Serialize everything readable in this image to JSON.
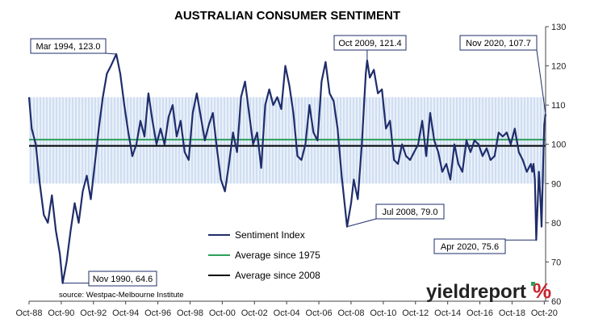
{
  "chart_data": {
    "type": "line",
    "title": "AUSTRALIAN CONSUMER SENTIMENT",
    "x_tick_labels": [
      "Oct-88",
      "Oct-90",
      "Oct-92",
      "Oct-94",
      "Oct-96",
      "Oct-98",
      "Oct-00",
      "Oct-02",
      "Oct-04",
      "Oct-06",
      "Oct-08",
      "Oct-10",
      "Oct-12",
      "Oct-14",
      "Oct-16",
      "Oct-18",
      "Oct-20"
    ],
    "y_tick_labels": [
      "130",
      "120",
      "110",
      "100",
      "90",
      "80",
      "70",
      "60"
    ],
    "ylim": [
      60,
      130
    ],
    "xlim": [
      "1988-10",
      "2020-11"
    ],
    "y_axis_side": "right",
    "series": [
      {
        "name": "Sentiment Index",
        "color": "#1f2d6b",
        "points": [
          [
            "1988-10",
            112
          ],
          [
            "1988-12",
            104
          ],
          [
            "1989-03",
            100
          ],
          [
            "1989-06",
            90
          ],
          [
            "1989-09",
            82
          ],
          [
            "1989-12",
            80
          ],
          [
            "1990-03",
            87
          ],
          [
            "1990-06",
            78
          ],
          [
            "1990-09",
            72
          ],
          [
            "1990-11",
            64.6
          ],
          [
            "1991-02",
            70
          ],
          [
            "1991-05",
            78
          ],
          [
            "1991-08",
            85
          ],
          [
            "1991-11",
            80
          ],
          [
            "1992-02",
            88
          ],
          [
            "1992-05",
            92
          ],
          [
            "1992-08",
            86
          ],
          [
            "1992-11",
            95
          ],
          [
            "1993-02",
            104
          ],
          [
            "1993-05",
            112
          ],
          [
            "1993-08",
            118
          ],
          [
            "1993-11",
            120
          ],
          [
            "1994-03",
            123.0
          ],
          [
            "1994-06",
            118
          ],
          [
            "1994-09",
            110
          ],
          [
            "1994-12",
            103
          ],
          [
            "1995-03",
            97
          ],
          [
            "1995-06",
            100
          ],
          [
            "1995-09",
            106
          ],
          [
            "1995-12",
            102
          ],
          [
            "1996-03",
            113
          ],
          [
            "1996-06",
            106
          ],
          [
            "1996-09",
            100
          ],
          [
            "1996-12",
            104
          ],
          [
            "1997-03",
            100
          ],
          [
            "1997-06",
            107
          ],
          [
            "1997-09",
            110
          ],
          [
            "1997-12",
            102
          ],
          [
            "1998-03",
            106
          ],
          [
            "1998-06",
            98
          ],
          [
            "1998-09",
            96
          ],
          [
            "1998-12",
            108
          ],
          [
            "1999-03",
            113
          ],
          [
            "1999-06",
            107
          ],
          [
            "1999-09",
            101
          ],
          [
            "1999-12",
            105
          ],
          [
            "2000-03",
            108
          ],
          [
            "2000-06",
            99
          ],
          [
            "2000-09",
            91
          ],
          [
            "2000-12",
            88
          ],
          [
            "2001-03",
            95
          ],
          [
            "2001-06",
            103
          ],
          [
            "2001-09",
            98
          ],
          [
            "2001-12",
            112
          ],
          [
            "2002-03",
            116
          ],
          [
            "2002-06",
            108
          ],
          [
            "2002-09",
            100
          ],
          [
            "2002-12",
            103
          ],
          [
            "2003-03",
            94
          ],
          [
            "2003-06",
            110
          ],
          [
            "2003-09",
            114
          ],
          [
            "2003-12",
            110
          ],
          [
            "2004-03",
            112
          ],
          [
            "2004-06",
            109
          ],
          [
            "2004-09",
            120
          ],
          [
            "2004-12",
            115
          ],
          [
            "2005-03",
            108
          ],
          [
            "2005-06",
            97
          ],
          [
            "2005-09",
            96
          ],
          [
            "2005-12",
            100
          ],
          [
            "2006-03",
            110
          ],
          [
            "2006-06",
            103
          ],
          [
            "2006-09",
            101
          ],
          [
            "2006-12",
            116
          ],
          [
            "2007-03",
            121
          ],
          [
            "2007-06",
            113
          ],
          [
            "2007-09",
            111
          ],
          [
            "2007-12",
            104
          ],
          [
            "2008-03",
            92
          ],
          [
            "2008-07",
            79.0
          ],
          [
            "2008-10",
            85
          ],
          [
            "2008-12",
            91
          ],
          [
            "2009-03",
            86
          ],
          [
            "2009-06",
            100
          ],
          [
            "2009-09",
            118
          ],
          [
            "2009-10",
            121.4
          ],
          [
            "2009-12",
            117
          ],
          [
            "2010-03",
            119
          ],
          [
            "2010-06",
            113
          ],
          [
            "2010-09",
            114
          ],
          [
            "2010-12",
            104
          ],
          [
            "2011-03",
            106
          ],
          [
            "2011-06",
            96
          ],
          [
            "2011-09",
            95
          ],
          [
            "2011-12",
            100
          ],
          [
            "2012-03",
            97
          ],
          [
            "2012-06",
            96
          ],
          [
            "2012-09",
            98
          ],
          [
            "2012-12",
            100
          ],
          [
            "2013-03",
            106
          ],
          [
            "2013-06",
            97
          ],
          [
            "2013-09",
            108
          ],
          [
            "2013-12",
            101
          ],
          [
            "2014-03",
            98
          ],
          [
            "2014-06",
            93
          ],
          [
            "2014-09",
            95
          ],
          [
            "2014-12",
            91
          ],
          [
            "2015-03",
            100
          ],
          [
            "2015-06",
            95
          ],
          [
            "2015-09",
            93
          ],
          [
            "2015-12",
            101
          ],
          [
            "2016-03",
            98
          ],
          [
            "2016-06",
            101
          ],
          [
            "2016-09",
            100
          ],
          [
            "2016-12",
            97
          ],
          [
            "2017-03",
            99
          ],
          [
            "2017-06",
            96
          ],
          [
            "2017-09",
            97
          ],
          [
            "2017-12",
            103
          ],
          [
            "2018-03",
            102
          ],
          [
            "2018-06",
            103
          ],
          [
            "2018-09",
            100
          ],
          [
            "2018-12",
            104
          ],
          [
            "2019-03",
            98
          ],
          [
            "2019-06",
            96
          ],
          [
            "2019-09",
            93
          ],
          [
            "2019-12",
            95
          ],
          [
            "2020-01",
            93
          ],
          [
            "2020-02",
            95
          ],
          [
            "2020-03",
            91
          ],
          [
            "2020-04",
            75.6
          ],
          [
            "2020-06",
            93
          ],
          [
            "2020-07",
            87
          ],
          [
            "2020-08",
            79
          ],
          [
            "2020-09",
            93
          ],
          [
            "2020-10",
            105
          ],
          [
            "2020-11",
            107.7
          ]
        ]
      },
      {
        "name": "Average since 1975",
        "color": "#2ea05a",
        "value": 101.2
      },
      {
        "name": "Average since 2008",
        "color": "#000000",
        "value": 99.6
      }
    ],
    "band": {
      "from": 90,
      "to": 112,
      "color": "#b7cbe8"
    },
    "annotations": [
      {
        "text": "Mar 1994, 123.0",
        "x": "1994-03",
        "y": 123.0
      },
      {
        "text": "Nov 1990, 64.6",
        "x": "1990-11",
        "y": 64.6
      },
      {
        "text": "Oct 2009, 121.4",
        "x": "2009-10",
        "y": 121.4
      },
      {
        "text": "Jul 2008, 79.0",
        "x": "2008-07",
        "y": 79.0
      },
      {
        "text": "Nov 2020, 107.7",
        "x": "2020-11",
        "y": 107.7
      },
      {
        "text": "Apr 2020, 75.6",
        "x": "2020-04",
        "y": 75.6
      }
    ],
    "legend": {
      "items": [
        "Sentiment Index",
        "Average since 1975",
        "Average since 2008"
      ],
      "position": "bottom-center"
    },
    "source": "source: Westpac-Melbourne Institute",
    "logo": "yieldreport",
    "logo_symbol": "%"
  }
}
